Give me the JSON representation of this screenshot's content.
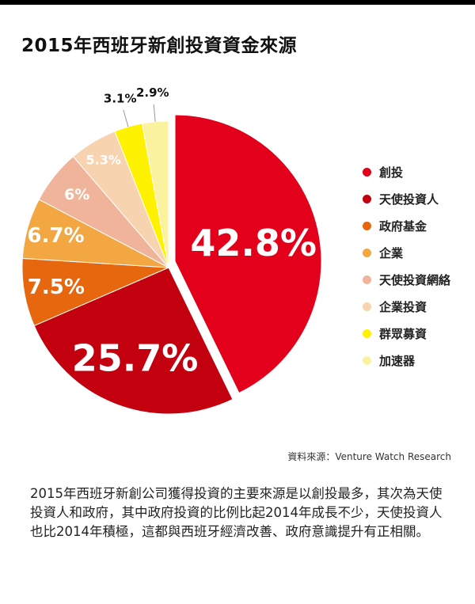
{
  "title": "2015年西班牙新創投資資金來源",
  "source": "資料來源：Venture Watch Research",
  "description": "2015年西班牙新創公司獲得投資的主要來源是以創投最多，其次為天使投資人和政府，其中政府投資的比例比起2014年成長不少，天使投資人也比2014年積極，這都與西班牙經濟改善、政府意識提升有正相關。",
  "chart_data": {
    "type": "pie",
    "title": "2015年西班牙新創投資資金來源",
    "legend_position": "right",
    "slices": [
      {
        "label": "創投",
        "value": 42.8,
        "display": "42.8%",
        "color": "#e2001a"
      },
      {
        "label": "天使投資人",
        "value": 25.7,
        "display": "25.7%",
        "color": "#c2000e"
      },
      {
        "label": "政府基金",
        "value": 7.5,
        "display": "7.5%",
        "color": "#e7670f"
      },
      {
        "label": "企業",
        "value": 6.7,
        "display": "6.7%",
        "color": "#f3a742"
      },
      {
        "label": "天使投資網絡",
        "value": 6,
        "display": "6%",
        "color": "#efb49a"
      },
      {
        "label": "企業投資",
        "value": 5.3,
        "display": "5.3%",
        "color": "#f8d3b0"
      },
      {
        "label": "群眾募資",
        "value": 3.1,
        "display": "3.1%",
        "color": "#fff200"
      },
      {
        "label": "加速器",
        "value": 2.9,
        "display": "2.9%",
        "color": "#fbf2a0"
      }
    ]
  }
}
